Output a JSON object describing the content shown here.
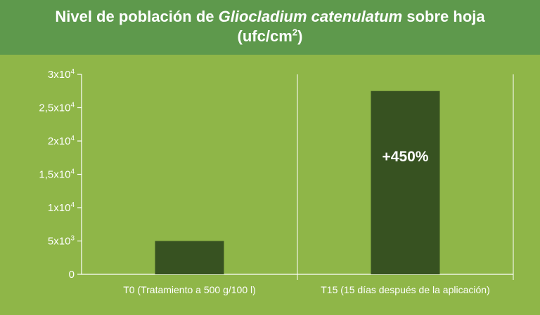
{
  "header": {
    "title_prefix": "Nivel de población de",
    "title_species": "Gliocladium catenulatum",
    "title_suffix": "sobre hoja",
    "title_units_base": "(ufc/cm",
    "title_units_exp": "2",
    "title_units_close": ")"
  },
  "chart_data": {
    "type": "bar",
    "title": "Nivel de población de Gliocladium catenulatum sobre hoja (ufc/cm2)",
    "categories": [
      "T0 (Tratamiento a 500 g/100 l)",
      "T15 (15 días después de la aplicación)"
    ],
    "values": [
      5000,
      27500
    ],
    "ylim": [
      0,
      30000
    ],
    "yticks": [
      {
        "value": 0,
        "base": "0",
        "exp": ""
      },
      {
        "value": 5000,
        "base": "5x10",
        "exp": "3"
      },
      {
        "value": 10000,
        "base": "1x10",
        "exp": "4"
      },
      {
        "value": 15000,
        "base": "1,5x10",
        "exp": "4"
      },
      {
        "value": 20000,
        "base": "2x10",
        "exp": "4"
      },
      {
        "value": 25000,
        "base": "2,5x10",
        "exp": "4"
      },
      {
        "value": 30000,
        "base": "3x10",
        "exp": "4"
      }
    ],
    "annotations": [
      {
        "category_index": 1,
        "text": "+450%"
      }
    ],
    "grid": "vertical lines",
    "colors": {
      "bar": "#375221",
      "background": "#8fb648",
      "header": "#5e994c",
      "axis": "#ffffff"
    }
  }
}
